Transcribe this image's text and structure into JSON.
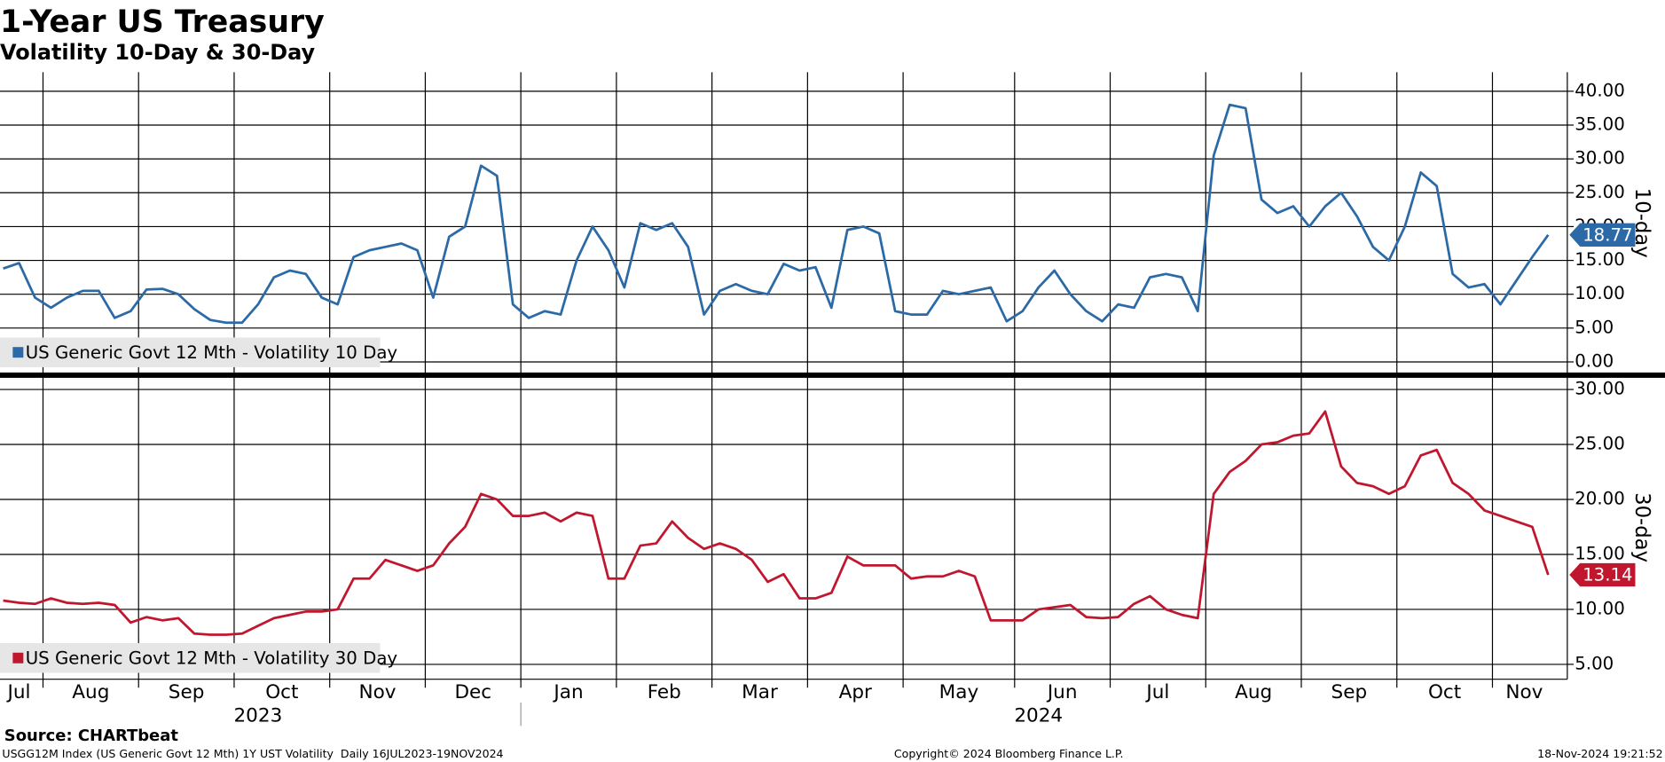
{
  "chart_data": [
    {
      "type": "line",
      "title": "1-Year US Treasury",
      "subtitle": "Volatility 10-Day & 30-Day",
      "y_label": "10-day",
      "ylim": [
        -1.41,
        42.82
      ],
      "yticks": [
        {
          "value": 0,
          "label": "0.00"
        },
        {
          "value": 5,
          "label": "5.00"
        },
        {
          "value": 10,
          "label": "10.00"
        },
        {
          "value": 15,
          "label": "15.00"
        },
        {
          "value": 20,
          "label": "20.00"
        },
        {
          "value": 25,
          "label": "25.00"
        },
        {
          "value": 30,
          "label": "30.00"
        },
        {
          "value": 35,
          "label": "35.00"
        },
        {
          "value": 40,
          "label": "40.00"
        }
      ],
      "grid": true,
      "legend": "bottom-left",
      "series": [
        {
          "name": "US Generic Govt 12 Mth - Volatility 10 Day",
          "color": "#2b6aa6",
          "values": [
            13.8,
            14.6,
            9.5,
            8,
            9.5,
            10.5,
            10.5,
            6.5,
            7.5,
            10.7,
            10.8,
            10,
            7.8,
            6.2,
            5.8,
            5.8,
            8.5,
            12.5,
            13.5,
            13,
            9.5,
            8.5,
            15.5,
            16.5,
            17,
            17.5,
            16.5,
            9.5,
            18.5,
            20,
            29,
            27.5,
            8.5,
            6.5,
            7.5,
            7,
            15,
            20,
            16.5,
            11,
            20.5,
            19.5,
            20.5,
            17,
            7,
            10.5,
            11.5,
            10.5,
            10,
            14.5,
            13.5,
            14,
            8,
            19.5,
            20,
            19,
            7.5,
            7,
            7,
            10.5,
            10,
            10.5,
            11,
            6,
            7.5,
            11,
            13.5,
            10,
            7.5,
            6,
            8.5,
            8,
            12.5,
            13,
            12.5,
            7.5,
            30.5,
            38,
            37.5,
            24,
            22,
            23,
            20,
            23,
            25,
            21.5,
            17,
            15,
            20,
            28,
            26,
            13,
            11,
            11.5,
            8.5,
            12,
            15.5,
            18.77
          ]
        }
      ]
    },
    {
      "type": "line",
      "y_label": "30-day",
      "ylim": [
        3.84,
        31.06
      ],
      "yticks": [
        {
          "value": 5,
          "label": "5.00"
        },
        {
          "value": 10,
          "label": "10.00"
        },
        {
          "value": 15,
          "label": "15.00"
        },
        {
          "value": 20,
          "label": "20.00"
        },
        {
          "value": 25,
          "label": "25.00"
        },
        {
          "value": 30,
          "label": "30.00"
        }
      ],
      "grid": true,
      "legend": "bottom-left",
      "month_names": [
        "Jan",
        "Feb",
        "Mar",
        "Apr",
        "May",
        "Jun",
        "Jul",
        "Aug",
        "Sep",
        "Oct",
        "Nov",
        "Dec"
      ],
      "years": [
        "2023",
        "2024"
      ],
      "x": [
        "2023-07",
        "2023-07",
        "2023-07",
        "2023-08",
        "2023-08",
        "2023-08",
        "2023-08",
        "2023-08",
        "2023-08",
        "2023-09",
        "2023-09",
        "2023-09",
        "2023-09",
        "2023-09",
        "2023-09",
        "2023-10",
        "2023-10",
        "2023-10",
        "2023-10",
        "2023-10",
        "2023-10",
        "2023-11",
        "2023-11",
        "2023-11",
        "2023-11",
        "2023-11",
        "2023-11",
        "2023-12",
        "2023-12",
        "2023-12",
        "2023-12",
        "2023-12",
        "2023-12",
        "2024-01",
        "2024-01",
        "2024-01",
        "2024-01",
        "2024-01",
        "2024-01",
        "2024-02",
        "2024-02",
        "2024-02",
        "2024-02",
        "2024-02",
        "2024-02",
        "2024-03",
        "2024-03",
        "2024-03",
        "2024-03",
        "2024-03",
        "2024-03",
        "2024-04",
        "2024-04",
        "2024-04",
        "2024-04",
        "2024-04",
        "2024-04",
        "2024-05",
        "2024-05",
        "2024-05",
        "2024-05",
        "2024-05",
        "2024-05",
        "2024-05",
        "2024-06",
        "2024-06",
        "2024-06",
        "2024-06",
        "2024-06",
        "2024-06",
        "2024-07",
        "2024-07",
        "2024-07",
        "2024-07",
        "2024-07",
        "2024-07",
        "2024-08",
        "2024-08",
        "2024-08",
        "2024-08",
        "2024-08",
        "2024-08",
        "2024-09",
        "2024-09",
        "2024-09",
        "2024-09",
        "2024-09",
        "2024-09",
        "2024-10",
        "2024-10",
        "2024-10",
        "2024-10",
        "2024-10",
        "2024-10",
        "2024-11",
        "2024-11",
        "2024-11",
        "2024-11"
      ],
      "series": [
        {
          "name": "US Generic Govt 12 Mth - Volatility 30 Day",
          "color": "#c0172f",
          "values": [
            10.8,
            10.6,
            10.5,
            11,
            10.6,
            10.5,
            10.6,
            10.4,
            8.8,
            9.3,
            9,
            9.2,
            7.8,
            7.7,
            7.7,
            7.8,
            8.5,
            9.2,
            9.5,
            9.8,
            9.8,
            10,
            12.8,
            12.8,
            14.5,
            14,
            13.5,
            14,
            16,
            17.5,
            20.5,
            20,
            18.5,
            18.5,
            18.8,
            18,
            18.8,
            18.5,
            12.8,
            12.8,
            15.8,
            16,
            18,
            16.5,
            15.5,
            16,
            15.5,
            14.5,
            12.5,
            13.2,
            11,
            11,
            11.5,
            14.8,
            14,
            14,
            14,
            12.8,
            13,
            13,
            13.5,
            13,
            9,
            9,
            9,
            10,
            10.2,
            10.4,
            9.3,
            9.2,
            9.3,
            10.5,
            11.2,
            10,
            9.5,
            9.2,
            20.5,
            22.5,
            23.5,
            25,
            25.2,
            25.8,
            26,
            28,
            23,
            21.5,
            21.2,
            20.5,
            21.2,
            24,
            24.5,
            21.5,
            20.5,
            19,
            18.5,
            18,
            17.5,
            13.14
          ]
        }
      ]
    }
  ],
  "footer": {
    "source": "Source: CHARTbeat",
    "description": "USGG12M Index (US Generic Govt 12 Mth) 1Y UST Volatility  Daily 16JUL2023-19NOV2024",
    "copyright": "Copyright© 2024 Bloomberg Finance L.P.",
    "timestamp": "18-Nov-2024 19:21:52"
  }
}
